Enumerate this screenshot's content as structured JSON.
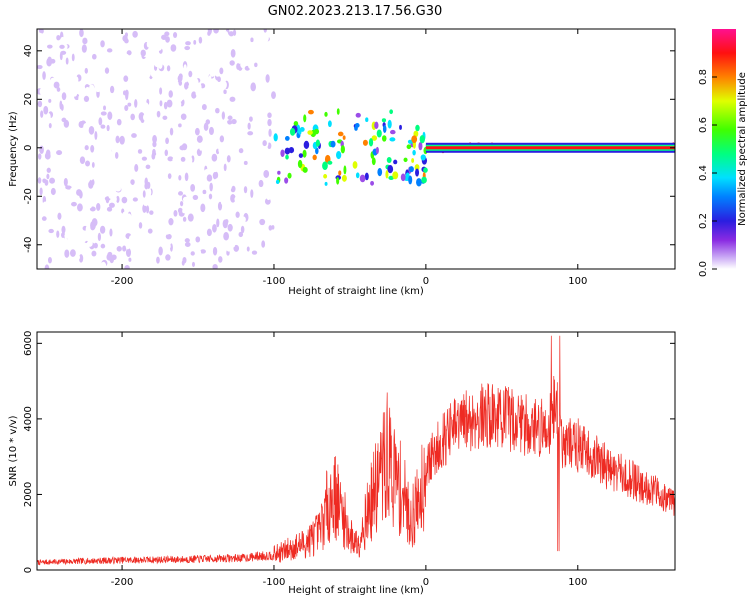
{
  "page": {
    "title": "GN02.2023.213.17.56.G30"
  },
  "colors": {
    "snr_line": "#ee2a22",
    "frame": "#000000",
    "background": "#ffffff"
  },
  "chart_data": [
    {
      "type": "heatmap",
      "title": "GN02.2023.213.17.56.G30",
      "xlabel": "Height of straight line (km)",
      "ylabel": "Frequency (Hz)",
      "xlim": [
        -256,
        164
      ],
      "ylim": [
        -50,
        49
      ],
      "x_ticks": [
        -200,
        -100,
        0,
        100
      ],
      "y_ticks": [
        40,
        20,
        0,
        -20,
        -40
      ],
      "grid": false,
      "colorbar": {
        "label": "Normalized spectral amplitude",
        "range": [
          0.0,
          1.0
        ],
        "ticks": [
          0.0,
          0.2,
          0.4,
          0.6,
          0.8
        ],
        "tick_labels": [
          "0.0",
          "0.2",
          "0.4",
          "0.6",
          "0.8"
        ],
        "colormap": "hsv-like: white-violet (0) → blue → cyan → green → yellow → red → magenta (1)"
      },
      "description_regions": [
        {
          "x_range": [
            -256,
            -100
          ],
          "freq_range": [
            -50,
            49
          ],
          "amplitude": 0.05,
          "pattern": "broadband noise"
        },
        {
          "x_range": [
            -100,
            0
          ],
          "freq_range": [
            -15,
            15
          ],
          "amplitude": 0.5,
          "pattern": "converging signal"
        },
        {
          "x_range": [
            0,
            164
          ],
          "freq_center": 0,
          "freq_width": 2,
          "amplitude": 0.9,
          "pattern": "narrow carrier line"
        }
      ]
    },
    {
      "type": "line",
      "xlabel": "Height of straight line (km)",
      "ylabel": "SNR (10 * v/v)",
      "xlim": [
        -256,
        164
      ],
      "ylim": [
        0,
        6300
      ],
      "x_ticks": [
        -200,
        -100,
        0,
        100
      ],
      "y_ticks": [
        0,
        2000,
        4000,
        6000
      ],
      "grid": false,
      "series": [
        {
          "color": "#ee2a22",
          "x": [
            -256,
            -240,
            -220,
            -200,
            -180,
            -160,
            -140,
            -120,
            -100,
            -90,
            -80,
            -70,
            -65,
            -60,
            -55,
            -50,
            -45,
            -40,
            -35,
            -30,
            -25,
            -20,
            -15,
            -10,
            -5,
            0,
            10,
            20,
            30,
            40,
            50,
            60,
            70,
            80,
            85,
            90,
            100,
            110,
            120,
            130,
            140,
            150,
            164
          ],
          "values": [
            200,
            220,
            240,
            260,
            270,
            280,
            300,
            320,
            400,
            550,
            700,
            1000,
            1700,
            2000,
            1500,
            900,
            700,
            1300,
            1900,
            2500,
            3000,
            2400,
            2000,
            1300,
            1800,
            2700,
            3400,
            3800,
            4000,
            4100,
            4050,
            3950,
            3800,
            3700,
            4500,
            3400,
            3300,
            3000,
            2700,
            2500,
            2300,
            2100,
            1800
          ]
        }
      ]
    }
  ]
}
